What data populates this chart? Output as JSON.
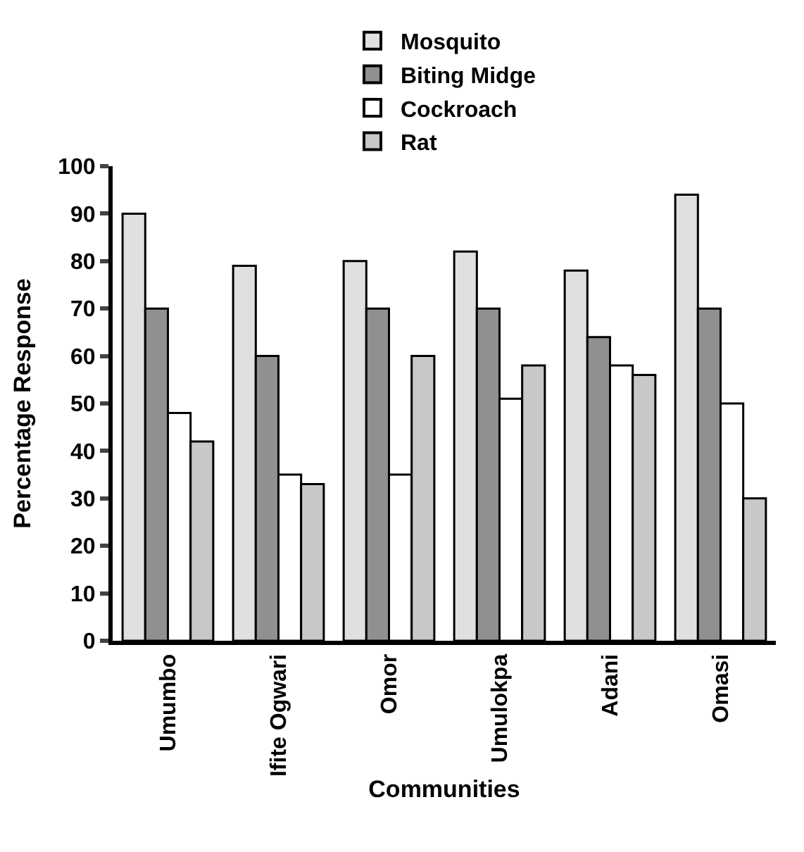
{
  "chart_data": {
    "type": "bar",
    "xlabel": "Communities",
    "ylabel": "Percentage Response",
    "categories": [
      "Umumbo",
      "Ifite Ogwari",
      "Omor",
      "Umulokpa",
      "Adani",
      "Omasi"
    ],
    "series": [
      {
        "name": "Mosquito",
        "color": "#e0e0e0",
        "values": [
          90,
          79,
          80,
          82,
          78,
          94
        ]
      },
      {
        "name": "Biting Midge",
        "color": "#909090",
        "values": [
          70,
          60,
          70,
          70,
          64,
          70
        ]
      },
      {
        "name": "Cockroach",
        "color": "#ffffff",
        "values": [
          48,
          35,
          35,
          51,
          58,
          50
        ]
      },
      {
        "name": "Rat",
        "color": "#c8c8c8",
        "values": [
          42,
          33,
          60,
          58,
          56,
          30
        ]
      }
    ],
    "ylim": [
      0,
      100
    ],
    "yticks": [
      0,
      10,
      20,
      30,
      40,
      50,
      60,
      70,
      80,
      90,
      100
    ],
    "legend": "top"
  }
}
